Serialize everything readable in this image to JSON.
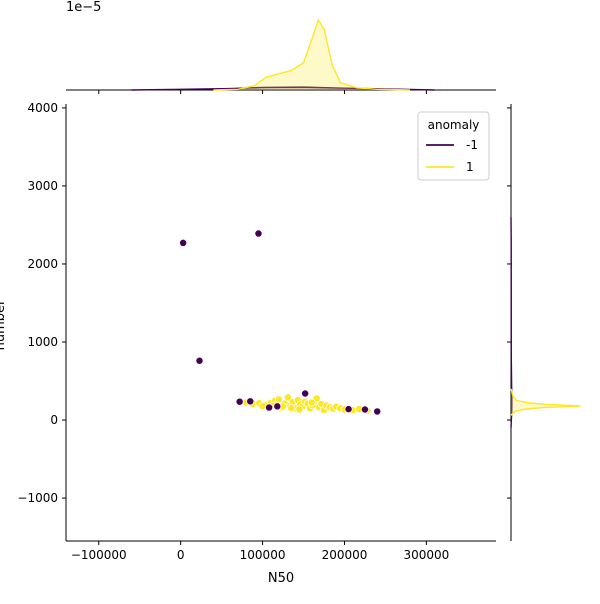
{
  "chart_data": {
    "type": "scatter",
    "title": "",
    "xlabel": "N50",
    "ylabel": "number",
    "xlim": [
      -140000,
      385000
    ],
    "ylim": [
      -1550,
      4050
    ],
    "xticks": [
      {
        "value": -100000,
        "label": "−100000"
      },
      {
        "value": 0,
        "label": "0"
      },
      {
        "value": 100000,
        "label": "100000"
      },
      {
        "value": 200000,
        "label": "200000"
      },
      {
        "value": 300000,
        "label": "300000"
      }
    ],
    "yticks": [
      {
        "value": -1000,
        "label": "−1000"
      },
      {
        "value": 0,
        "label": "0"
      },
      {
        "value": 1000,
        "label": "1000"
      },
      {
        "value": 2000,
        "label": "2000"
      },
      {
        "value": 3000,
        "label": "3000"
      },
      {
        "value": 4000,
        "label": "4000"
      }
    ],
    "top_marginal_offset_label": "1e−5",
    "grid": false,
    "legend": {
      "title": "anomaly",
      "placement": "top-right"
    },
    "series": [
      {
        "name": "-1",
        "color": "#440154",
        "points": [
          {
            "x": 3000,
            "y": 2270
          },
          {
            "x": 95000,
            "y": 2390
          },
          {
            "x": 23000,
            "y": 760
          },
          {
            "x": 72000,
            "y": 235
          },
          {
            "x": 85000,
            "y": 240
          },
          {
            "x": 108000,
            "y": 160
          },
          {
            "x": 118000,
            "y": 175
          },
          {
            "x": 152000,
            "y": 340
          },
          {
            "x": 205000,
            "y": 140
          },
          {
            "x": 225000,
            "y": 135
          },
          {
            "x": 240000,
            "y": 110
          }
        ]
      },
      {
        "name": "1",
        "color": "#fde725",
        "points": [
          {
            "x": 80000,
            "y": 225
          },
          {
            "x": 88000,
            "y": 205
          },
          {
            "x": 96000,
            "y": 215
          },
          {
            "x": 103000,
            "y": 195
          },
          {
            "x": 110000,
            "y": 220
          },
          {
            "x": 115000,
            "y": 245
          },
          {
            "x": 120000,
            "y": 265
          },
          {
            "x": 123000,
            "y": 160
          },
          {
            "x": 127000,
            "y": 210
          },
          {
            "x": 131000,
            "y": 290
          },
          {
            "x": 134000,
            "y": 185
          },
          {
            "x": 137000,
            "y": 230
          },
          {
            "x": 140000,
            "y": 150
          },
          {
            "x": 143000,
            "y": 255
          },
          {
            "x": 146000,
            "y": 200
          },
          {
            "x": 149000,
            "y": 175
          },
          {
            "x": 152000,
            "y": 235
          },
          {
            "x": 155000,
            "y": 210
          },
          {
            "x": 158000,
            "y": 150
          },
          {
            "x": 161000,
            "y": 190
          },
          {
            "x": 164000,
            "y": 245
          },
          {
            "x": 166000,
            "y": 275
          },
          {
            "x": 169000,
            "y": 165
          },
          {
            "x": 172000,
            "y": 205
          },
          {
            "x": 175000,
            "y": 130
          },
          {
            "x": 178000,
            "y": 185
          },
          {
            "x": 182000,
            "y": 165
          },
          {
            "x": 186000,
            "y": 145
          },
          {
            "x": 190000,
            "y": 170
          },
          {
            "x": 195000,
            "y": 150
          },
          {
            "x": 200000,
            "y": 135
          },
          {
            "x": 210000,
            "y": 125
          },
          {
            "x": 218000,
            "y": 140
          },
          {
            "x": 228000,
            "y": 120
          },
          {
            "x": 125000,
            "y": 175
          },
          {
            "x": 135000,
            "y": 155
          },
          {
            "x": 145000,
            "y": 135
          },
          {
            "x": 160000,
            "y": 225
          },
          {
            "x": 113000,
            "y": 185
          },
          {
            "x": 100000,
            "y": 180
          }
        ]
      }
    ],
    "marginals": {
      "top": {
        "series": [
          {
            "name": "-1",
            "color": "#440154",
            "curve": [
              [
                -60000,
                0.0
              ],
              [
                0,
                0.01
              ],
              [
                60000,
                0.02
              ],
              [
                100000,
                0.035
              ],
              [
                150000,
                0.04
              ],
              [
                200000,
                0.025
              ],
              [
                250000,
                0.015
              ],
              [
                310000,
                0.0
              ]
            ]
          },
          {
            "name": "1",
            "color": "#fde725",
            "curve": [
              [
                40000,
                0.0
              ],
              [
                70000,
                0.01
              ],
              [
                90000,
                0.06
              ],
              [
                105000,
                0.18
              ],
              [
                118000,
                0.22
              ],
              [
                135000,
                0.27
              ],
              [
                150000,
                0.38
              ],
              [
                160000,
                0.7
              ],
              [
                168000,
                0.97
              ],
              [
                175000,
                0.85
              ],
              [
                185000,
                0.35
              ],
              [
                195000,
                0.1
              ],
              [
                215000,
                0.03
              ],
              [
                240000,
                0.01
              ],
              [
                280000,
                0.0
              ]
            ]
          }
        ]
      },
      "right": {
        "series": [
          {
            "name": "-1",
            "color": "#440154",
            "curve": [
              [
                -100,
                0.0
              ],
              [
                100,
                0.01
              ],
              [
                200,
                0.012
              ],
              [
                800,
                0.004
              ],
              [
                2300,
                0.003
              ],
              [
                2600,
                0.0
              ]
            ]
          },
          {
            "name": "1",
            "color": "#fde725",
            "curve": [
              [
                60,
                0.0
              ],
              [
                110,
                0.05
              ],
              [
                140,
                0.2
              ],
              [
                160,
                0.45
              ],
              [
                180,
                0.98
              ],
              [
                200,
                0.5
              ],
              [
                220,
                0.25
              ],
              [
                250,
                0.08
              ],
              [
                300,
                0.03
              ],
              [
                400,
                0.0
              ]
            ]
          }
        ]
      }
    }
  }
}
